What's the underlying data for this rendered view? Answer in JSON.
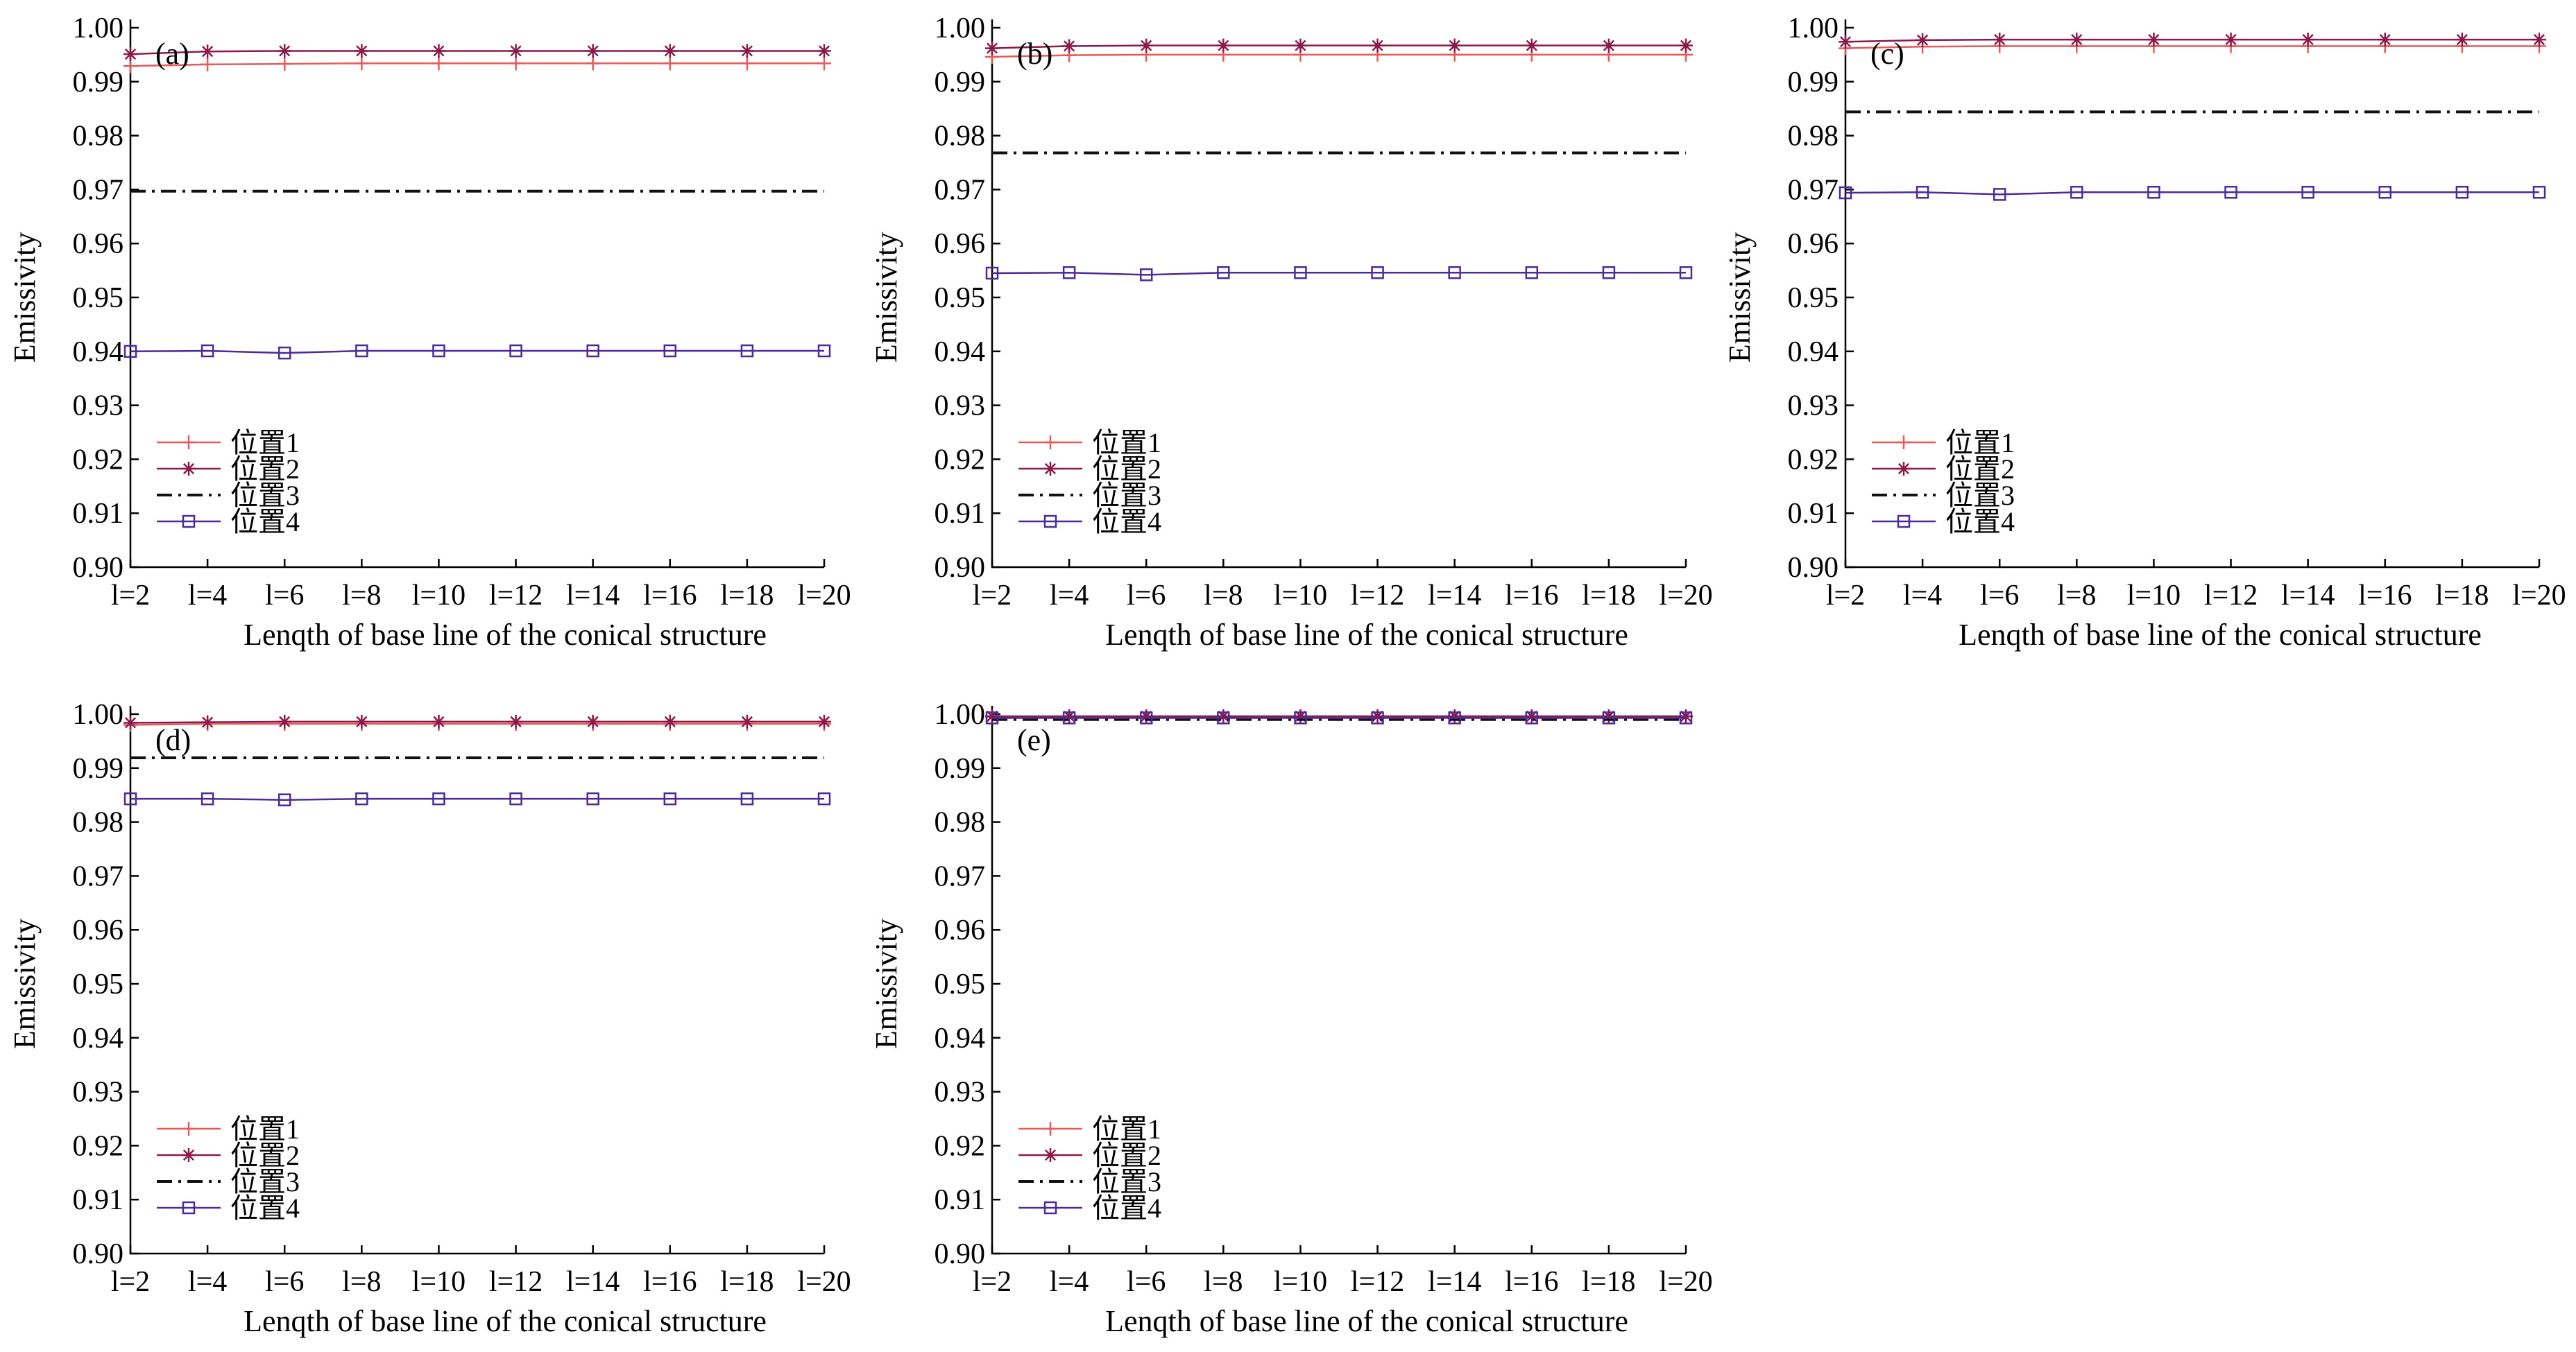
{
  "figure": {
    "y_axis_title": "Emissivity",
    "x_axis_title": "Lenqth of base line of the conical structure"
  },
  "chart_data": [
    {
      "type": "line",
      "panel_label": "(a)",
      "categories": [
        "l=2",
        "l=4",
        "l=6",
        "l=8",
        "l=10",
        "l=12",
        "l=14",
        "l=16",
        "l=18",
        "l=20"
      ],
      "xlabel": "Lenqth of base line of the conical structure",
      "ylabel": "Emissivity",
      "ylim": [
        0.9,
        1.0
      ],
      "yticks": [
        "0.90",
        "0.91",
        "0.92",
        "0.93",
        "0.94",
        "0.95",
        "0.96",
        "0.97",
        "0.98",
        "0.99",
        "1.00"
      ],
      "grid": false,
      "legend_position": "bottom-left",
      "series": [
        {
          "name": "位置1",
          "color": "#e8595a",
          "style": "solid",
          "marker": "plus",
          "values": [
            0.9929,
            0.9932,
            0.9933,
            0.9934,
            0.9934,
            0.9934,
            0.9934,
            0.9934,
            0.9934,
            0.9934
          ]
        },
        {
          "name": "位置2",
          "color": "#8b1a4a",
          "style": "solid",
          "marker": "star",
          "values": [
            0.9951,
            0.9956,
            0.9957,
            0.9957,
            0.9957,
            0.9957,
            0.9957,
            0.9957,
            0.9957,
            0.9957
          ]
        },
        {
          "name": "位置3",
          "color": "#111111",
          "style": "dashdot",
          "marker": "none",
          "values": [
            0.9697,
            0.9697,
            0.9697,
            0.9697,
            0.9697,
            0.9697,
            0.9697,
            0.9697,
            0.9697,
            0.9697
          ]
        },
        {
          "name": "位置4",
          "color": "#4b2a9a",
          "style": "solid",
          "marker": "square",
          "values": [
            0.94,
            0.9401,
            0.9397,
            0.9401,
            0.9401,
            0.9401,
            0.9401,
            0.9401,
            0.9401,
            0.9401
          ]
        }
      ]
    },
    {
      "type": "line",
      "panel_label": "(b)",
      "categories": [
        "l=2",
        "l=4",
        "l=6",
        "l=8",
        "l=10",
        "l=12",
        "l=14",
        "l=16",
        "l=18",
        "l=20"
      ],
      "xlabel": "Lenqth of base line of the conical structure",
      "ylabel": "Emissivity",
      "ylim": [
        0.9,
        1.0
      ],
      "yticks": [
        "0.90",
        "0.91",
        "0.92",
        "0.93",
        "0.94",
        "0.95",
        "0.96",
        "0.97",
        "0.98",
        "0.99",
        "1.00"
      ],
      "grid": false,
      "legend_position": "bottom-left",
      "series": [
        {
          "name": "位置1",
          "color": "#e8595a",
          "style": "solid",
          "marker": "plus",
          "values": [
            0.9946,
            0.9949,
            0.995,
            0.995,
            0.995,
            0.995,
            0.995,
            0.995,
            0.995,
            0.995
          ]
        },
        {
          "name": "位置2",
          "color": "#8b1a4a",
          "style": "solid",
          "marker": "star",
          "values": [
            0.9962,
            0.9966,
            0.9967,
            0.9967,
            0.9967,
            0.9967,
            0.9967,
            0.9967,
            0.9967,
            0.9967
          ]
        },
        {
          "name": "位置3",
          "color": "#111111",
          "style": "dashdot",
          "marker": "none",
          "values": [
            0.9768,
            0.9768,
            0.9768,
            0.9768,
            0.9768,
            0.9768,
            0.9768,
            0.9768,
            0.9768,
            0.9768
          ]
        },
        {
          "name": "位置4",
          "color": "#4b2a9a",
          "style": "solid",
          "marker": "square",
          "values": [
            0.9545,
            0.9546,
            0.9542,
            0.9546,
            0.9546,
            0.9546,
            0.9546,
            0.9546,
            0.9546,
            0.9546
          ]
        }
      ]
    },
    {
      "type": "line",
      "panel_label": "(c)",
      "categories": [
        "l=2",
        "l=4",
        "l=6",
        "l=8",
        "l=10",
        "l=12",
        "l=14",
        "l=16",
        "l=18",
        "l=20"
      ],
      "xlabel": "Lenqth of base line of the conical structure",
      "ylabel": "Emissivity",
      "ylim": [
        0.9,
        1.0
      ],
      "yticks": [
        "0.90",
        "0.91",
        "0.92",
        "0.93",
        "0.94",
        "0.95",
        "0.96",
        "0.97",
        "0.98",
        "0.99",
        "1.00"
      ],
      "grid": false,
      "legend_position": "bottom-left",
      "series": [
        {
          "name": "位置1",
          "color": "#e8595a",
          "style": "solid",
          "marker": "plus",
          "values": [
            0.9962,
            0.9965,
            0.9966,
            0.9966,
            0.9966,
            0.9966,
            0.9966,
            0.9966,
            0.9966,
            0.9966
          ]
        },
        {
          "name": "位置2",
          "color": "#8b1a4a",
          "style": "solid",
          "marker": "star",
          "values": [
            0.9974,
            0.9977,
            0.9978,
            0.9978,
            0.9978,
            0.9978,
            0.9978,
            0.9978,
            0.9978,
            0.9978
          ]
        },
        {
          "name": "位置3",
          "color": "#111111",
          "style": "dashdot",
          "marker": "none",
          "values": [
            0.9844,
            0.9844,
            0.9844,
            0.9844,
            0.9844,
            0.9844,
            0.9844,
            0.9844,
            0.9844,
            0.9844
          ]
        },
        {
          "name": "位置4",
          "color": "#4b2a9a",
          "style": "solid",
          "marker": "square",
          "values": [
            0.9694,
            0.9695,
            0.9691,
            0.9695,
            0.9695,
            0.9695,
            0.9695,
            0.9695,
            0.9695,
            0.9695
          ]
        }
      ]
    },
    {
      "type": "line",
      "panel_label": "(d)",
      "categories": [
        "l=2",
        "l=4",
        "l=6",
        "l=8",
        "l=10",
        "l=12",
        "l=14",
        "l=16",
        "l=18",
        "l=20"
      ],
      "xlabel": "Lenqth of base line of the conical structure",
      "ylabel": "Emissivity",
      "ylim": [
        0.9,
        1.0
      ],
      "yticks": [
        "0.90",
        "0.91",
        "0.92",
        "0.93",
        "0.94",
        "0.95",
        "0.96",
        "0.97",
        "0.98",
        "0.99",
        "1.00"
      ],
      "grid": false,
      "legend_position": "bottom-left",
      "series": [
        {
          "name": "位置1",
          "color": "#e8595a",
          "style": "solid",
          "marker": "plus",
          "values": [
            0.998,
            0.9982,
            0.9982,
            0.9982,
            0.9982,
            0.9982,
            0.9982,
            0.9982,
            0.9982,
            0.9982
          ]
        },
        {
          "name": "位置2",
          "color": "#8b1a4a",
          "style": "solid",
          "marker": "star",
          "values": [
            0.9984,
            0.9985,
            0.9986,
            0.9986,
            0.9986,
            0.9986,
            0.9986,
            0.9986,
            0.9986,
            0.9986
          ]
        },
        {
          "name": "位置3",
          "color": "#111111",
          "style": "dashdot",
          "marker": "none",
          "values": [
            0.9919,
            0.9919,
            0.9919,
            0.9919,
            0.9919,
            0.9919,
            0.9919,
            0.9919,
            0.9919,
            0.9919
          ]
        },
        {
          "name": "位置4",
          "color": "#4b2a9a",
          "style": "solid",
          "marker": "square",
          "values": [
            0.9843,
            0.9843,
            0.9841,
            0.9843,
            0.9843,
            0.9843,
            0.9843,
            0.9843,
            0.9843,
            0.9843
          ]
        }
      ]
    },
    {
      "type": "line",
      "panel_label": "(e)",
      "categories": [
        "l=2",
        "l=4",
        "l=6",
        "l=8",
        "l=10",
        "l=12",
        "l=14",
        "l=16",
        "l=18",
        "l=20"
      ],
      "xlabel": "Lenqth of base line of the conical structure",
      "ylabel": "Emissivity",
      "ylim": [
        0.9,
        1.0
      ],
      "yticks": [
        "0.90",
        "0.91",
        "0.92",
        "0.93",
        "0.94",
        "0.95",
        "0.96",
        "0.97",
        "0.98",
        "0.99",
        "1.00"
      ],
      "grid": false,
      "legend_position": "bottom-left",
      "series": [
        {
          "name": "位置1",
          "color": "#e8595a",
          "style": "solid",
          "marker": "plus",
          "values": [
            0.9995,
            0.9996,
            0.9996,
            0.9996,
            0.9996,
            0.9996,
            0.9996,
            0.9996,
            0.9996,
            0.9996
          ]
        },
        {
          "name": "位置2",
          "color": "#8b1a4a",
          "style": "solid",
          "marker": "star",
          "values": [
            0.9996,
            0.9996,
            0.9996,
            0.9996,
            0.9996,
            0.9996,
            0.9996,
            0.9996,
            0.9996,
            0.9996
          ]
        },
        {
          "name": "位置3",
          "color": "#111111",
          "style": "dashdot",
          "marker": "none",
          "values": [
            0.999,
            0.999,
            0.999,
            0.999,
            0.999,
            0.999,
            0.999,
            0.999,
            0.999,
            0.999
          ]
        },
        {
          "name": "位置4",
          "color": "#4b2a9a",
          "style": "solid",
          "marker": "square",
          "values": [
            0.9993,
            0.9993,
            0.9993,
            0.9993,
            0.9993,
            0.9993,
            0.9993,
            0.9993,
            0.9993,
            0.9993
          ]
        }
      ]
    }
  ]
}
